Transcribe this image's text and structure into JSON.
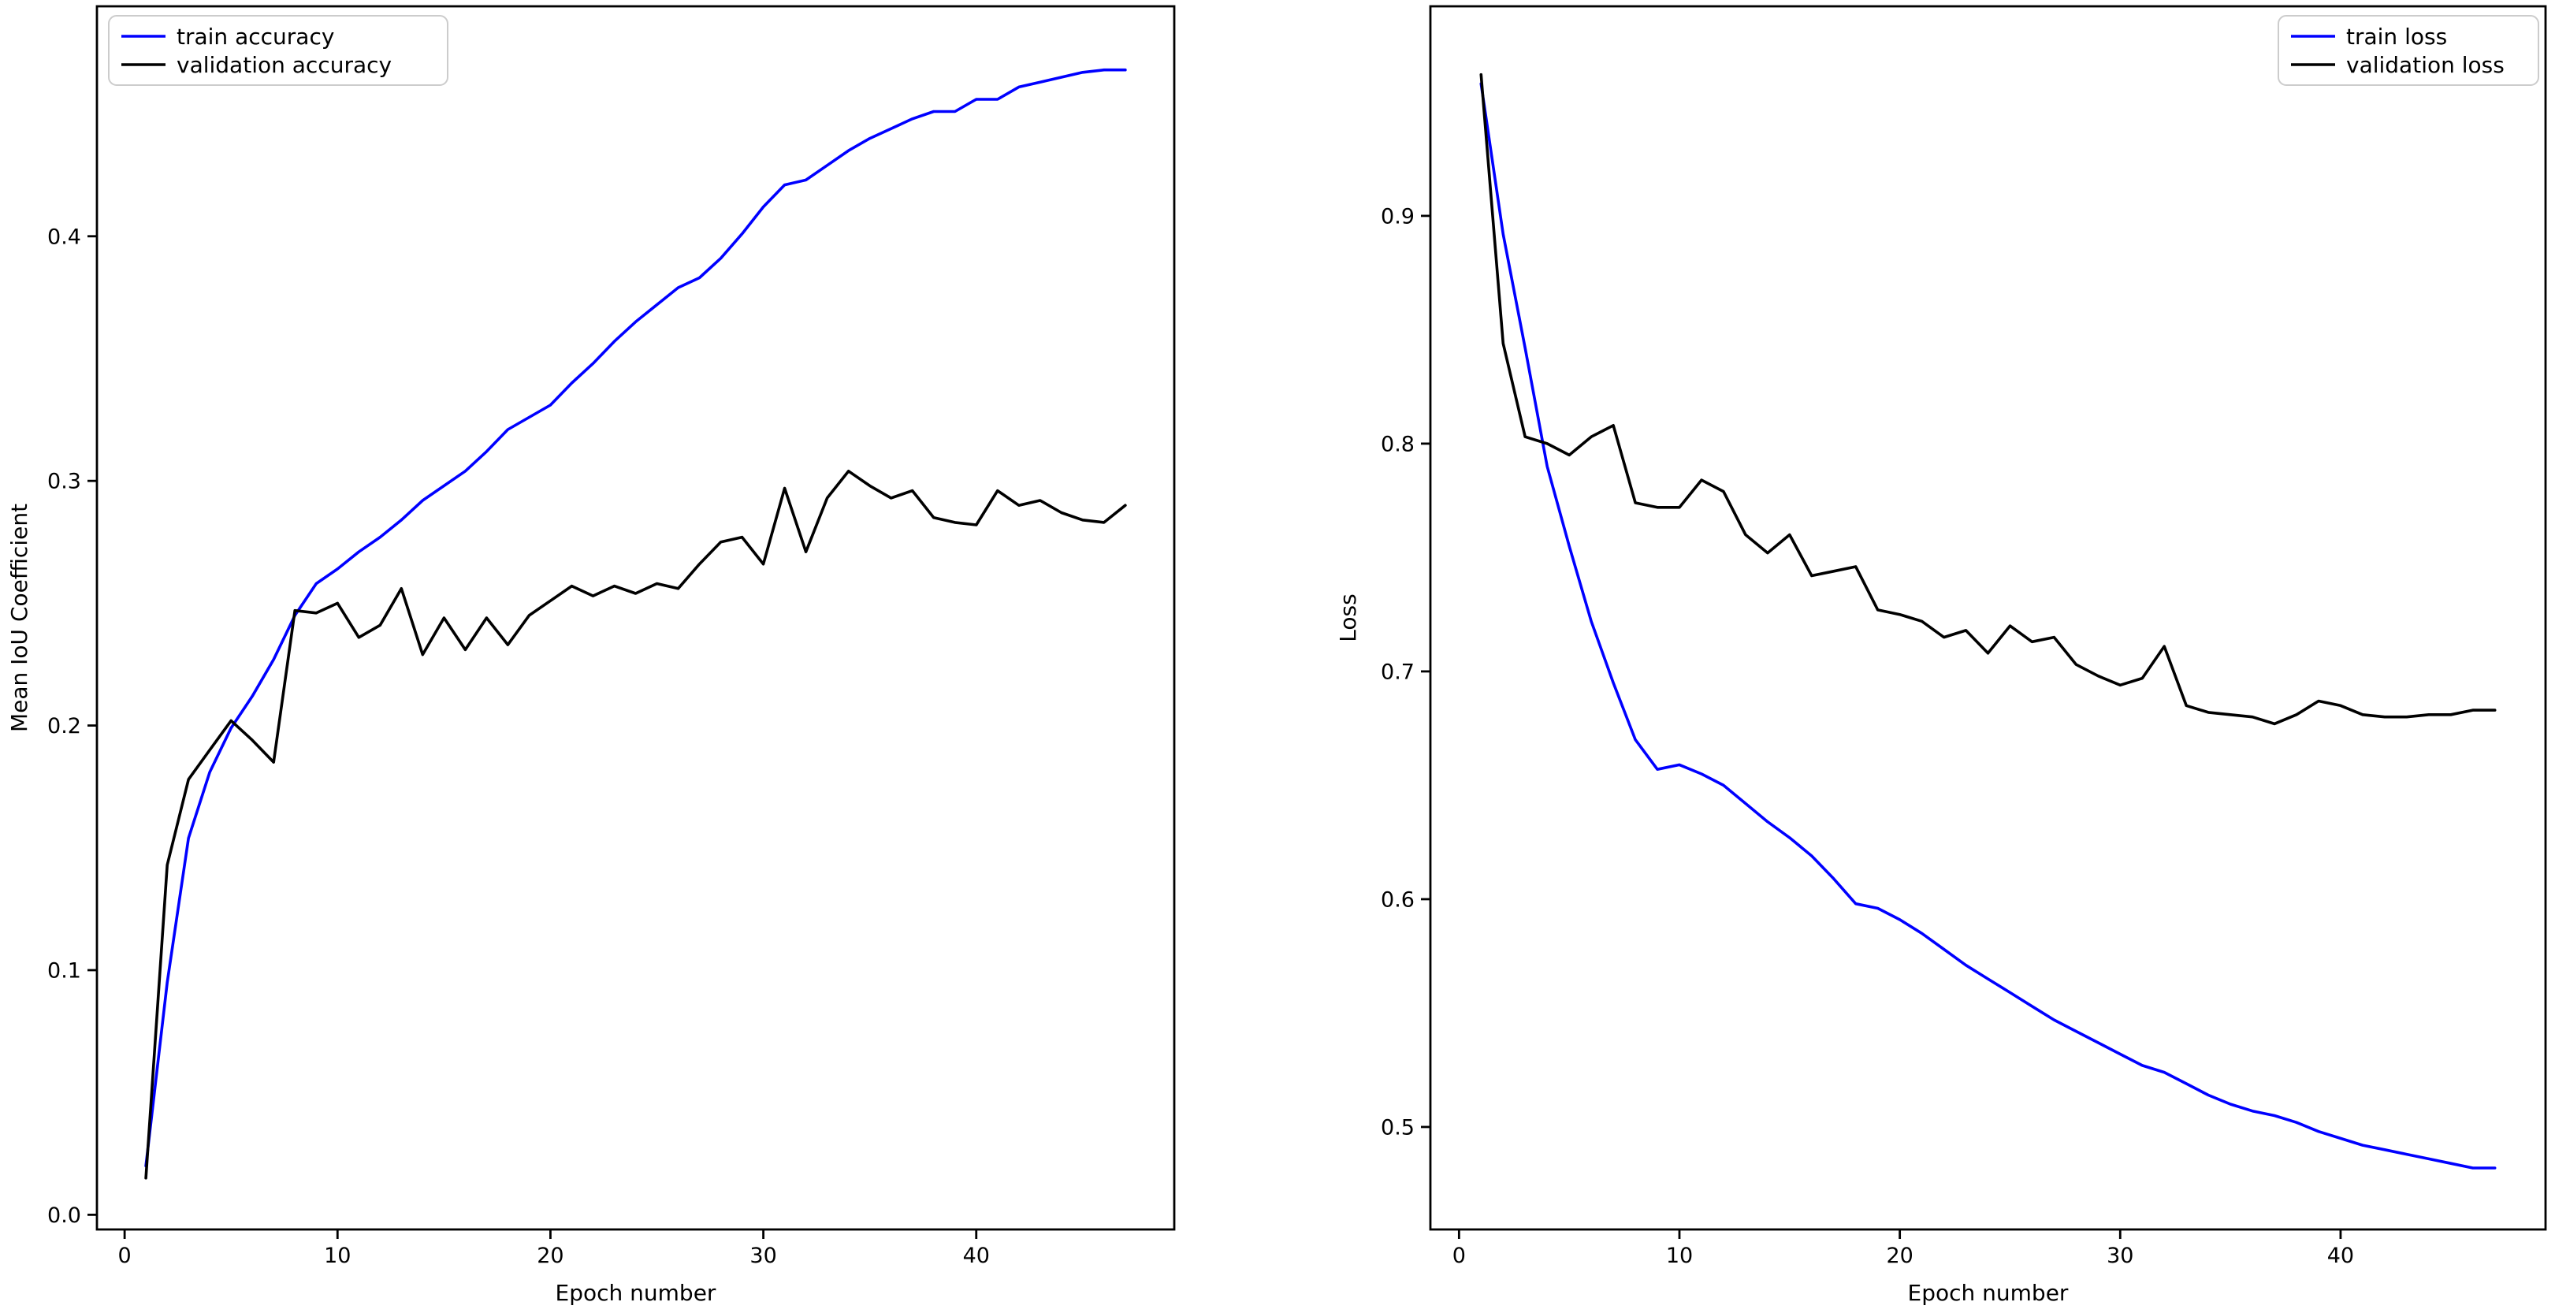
{
  "page": {
    "background": "#ffffff",
    "text_color": "#000000",
    "legend_border_color": "#cccccc"
  },
  "chart_data": [
    {
      "type": "line",
      "title": "",
      "xlabel": "Epoch number",
      "ylabel": "Mean IoU Coefficient",
      "xlim": [
        -1.3,
        49.3
      ],
      "ylim": [
        -0.006,
        0.494
      ],
      "xticks": [
        0,
        10,
        20,
        30,
        40
      ],
      "xtick_labels": [
        "0",
        "10",
        "20",
        "30",
        "40"
      ],
      "yticks": [
        0.0,
        0.1,
        0.2,
        0.3,
        0.4
      ],
      "ytick_labels": [
        "0.0",
        "0.1",
        "0.2",
        "0.3",
        "0.4"
      ],
      "grid": false,
      "legend_position": "upper left",
      "x": [
        1,
        2,
        3,
        4,
        5,
        6,
        7,
        8,
        9,
        10,
        11,
        12,
        13,
        14,
        15,
        16,
        17,
        18,
        19,
        20,
        21,
        22,
        23,
        24,
        25,
        26,
        27,
        28,
        29,
        30,
        31,
        32,
        33,
        34,
        35,
        36,
        37,
        38,
        39,
        40,
        41,
        42,
        43,
        44,
        45,
        46,
        47
      ],
      "series": [
        {
          "name": "train accuracy",
          "color": "#0000ff",
          "values": [
            0.02,
            0.095,
            0.154,
            0.181,
            0.199,
            0.212,
            0.227,
            0.245,
            0.258,
            0.264,
            0.271,
            0.277,
            0.284,
            0.292,
            0.298,
            0.304,
            0.312,
            0.321,
            0.326,
            0.331,
            0.34,
            0.348,
            0.357,
            0.365,
            0.372,
            0.379,
            0.383,
            0.391,
            0.401,
            0.412,
            0.421,
            0.423,
            0.429,
            0.435,
            0.44,
            0.444,
            0.448,
            0.451,
            0.451,
            0.456,
            0.456,
            0.461,
            0.463,
            0.465,
            0.467,
            0.468,
            0.468
          ]
        },
        {
          "name": "validation accuracy",
          "color": "#000000",
          "values": [
            0.015,
            0.143,
            0.178,
            0.19,
            0.202,
            0.194,
            0.185,
            0.247,
            0.246,
            0.25,
            0.236,
            0.241,
            0.256,
            0.229,
            0.244,
            0.231,
            0.244,
            0.233,
            0.245,
            0.251,
            0.257,
            0.253,
            0.257,
            0.254,
            0.258,
            0.256,
            0.266,
            0.275,
            0.277,
            0.266,
            0.297,
            0.271,
            0.293,
            0.304,
            0.298,
            0.293,
            0.296,
            0.285,
            0.283,
            0.282,
            0.296,
            0.29,
            0.292,
            0.287,
            0.284,
            0.283,
            0.29
          ]
        }
      ]
    },
    {
      "type": "line",
      "title": "",
      "xlabel": "Epoch number",
      "ylabel": "Loss",
      "xlim": [
        -1.3,
        49.3
      ],
      "ylim": [
        0.455,
        0.992
      ],
      "xticks": [
        0,
        10,
        20,
        30,
        40
      ],
      "xtick_labels": [
        "0",
        "10",
        "20",
        "30",
        "40"
      ],
      "yticks": [
        0.5,
        0.6,
        0.7,
        0.8,
        0.9
      ],
      "ytick_labels": [
        "0.5",
        "0.6",
        "0.7",
        "0.8",
        "0.9"
      ],
      "grid": false,
      "legend_position": "upper right",
      "x": [
        1,
        2,
        3,
        4,
        5,
        6,
        7,
        8,
        9,
        10,
        11,
        12,
        13,
        14,
        15,
        16,
        17,
        18,
        19,
        20,
        21,
        22,
        23,
        24,
        25,
        26,
        27,
        28,
        29,
        30,
        31,
        32,
        33,
        34,
        35,
        36,
        37,
        38,
        39,
        40,
        41,
        42,
        43,
        44,
        45,
        46,
        47
      ],
      "series": [
        {
          "name": "train loss",
          "color": "#0000ff",
          "values": [
            0.958,
            0.892,
            0.842,
            0.79,
            0.755,
            0.722,
            0.695,
            0.67,
            0.657,
            0.659,
            0.655,
            0.65,
            0.642,
            0.634,
            0.627,
            0.619,
            0.609,
            0.598,
            0.596,
            0.591,
            0.585,
            0.578,
            0.571,
            0.565,
            0.559,
            0.553,
            0.547,
            0.542,
            0.537,
            0.532,
            0.527,
            0.524,
            0.519,
            0.514,
            0.51,
            0.507,
            0.505,
            0.502,
            0.498,
            0.495,
            0.492,
            0.49,
            0.488,
            0.486,
            0.484,
            0.482,
            0.482
          ]
        },
        {
          "name": "validation loss",
          "color": "#000000",
          "values": [
            0.962,
            0.844,
            0.803,
            0.8,
            0.795,
            0.803,
            0.808,
            0.774,
            0.772,
            0.772,
            0.784,
            0.779,
            0.76,
            0.752,
            0.76,
            0.742,
            0.744,
            0.746,
            0.727,
            0.725,
            0.722,
            0.715,
            0.718,
            0.708,
            0.72,
            0.713,
            0.715,
            0.703,
            0.698,
            0.694,
            0.697,
            0.711,
            0.685,
            0.682,
            0.681,
            0.68,
            0.677,
            0.681,
            0.687,
            0.685,
            0.681,
            0.68,
            0.68,
            0.681,
            0.681,
            0.683,
            0.683
          ]
        }
      ]
    }
  ]
}
